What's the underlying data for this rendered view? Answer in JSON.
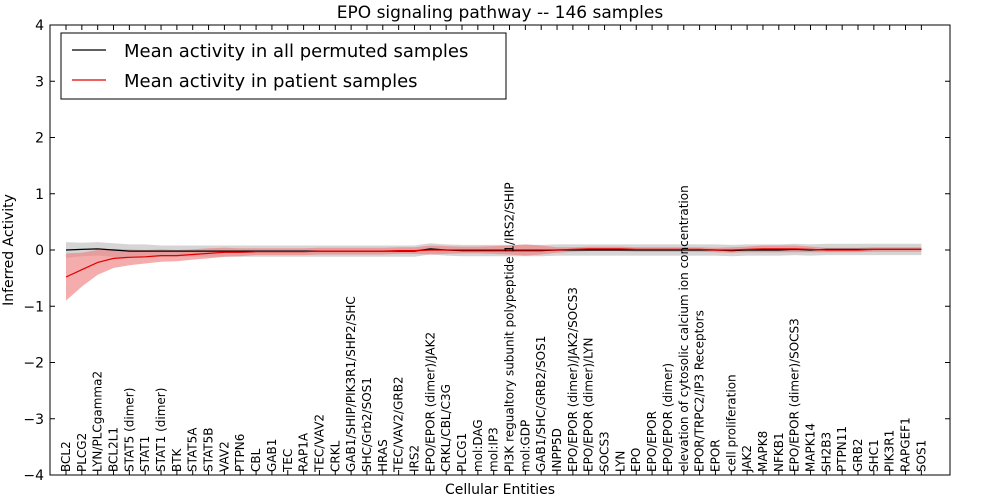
{
  "chart_data": {
    "type": "line",
    "title": "EPO signaling pathway -- 146 samples",
    "xlabel": "Cellular Entities",
    "ylabel": "Inferred Activity",
    "ylim": [
      -4,
      4
    ],
    "yticks": [
      -4,
      -3,
      -2,
      -1,
      0,
      1,
      2,
      3,
      4
    ],
    "ytick_labels": [
      "−4",
      "−3",
      "−2",
      "−1",
      "0",
      "1",
      "2",
      "3",
      "4"
    ],
    "legend_position": "top-left",
    "categories": [
      "BCL2",
      "PLCG2",
      "LYN/PLCgamma2",
      "BCL2L1",
      "STAT5 (dimer)",
      "STAT1",
      "STAT1 (dimer)",
      "BTK",
      "STAT5A",
      "STAT5B",
      "VAV2",
      "PTPN6",
      "CBL",
      "GAB1",
      "TEC",
      "RAP1A",
      "TEC/VAV2",
      "CRKL",
      "GAB1/SHIP/PIK3R1/SHP2/SHC",
      "SHC/Grb2/SOS1",
      "HRAS",
      "TEC/VAV2/GRB2",
      "IRS2",
      "EPO/EPOR (dimer)/JAK2",
      "CRKL/CBL/C3G",
      "PLCG1",
      "mol:DAG",
      "mol:IP3",
      "PI3K regualtory subunit polypeptide 1/IRS2/SHIP",
      "mol:GDP",
      "GAB1/SHC/GRB2/SOS1",
      "INPP5D",
      "EPO/EPOR (dimer)/JAK2/SOCS3",
      "EPO/EPOR (dimer)/LYN",
      "SOCS3",
      "LYN",
      "EPO",
      "EPO/EPOR",
      "EPO/EPOR (dimer)",
      "elevation of cytosolic calcium ion concentration",
      "EPOR/TRPC2/IP3 Receptors",
      "EPOR",
      "cell proliferation",
      "JAK2",
      "MAPK8",
      "NFKB1",
      "EPO/EPOR (dimer)/SOCS3",
      "MAPK14",
      "SH2B3",
      "PTPN11",
      "GRB2",
      "SHC1",
      "PIK3R1",
      "RAPGEF1",
      "SOS1"
    ],
    "series": [
      {
        "name": "Mean activity in all permuted samples",
        "color": "#000000",
        "values": [
          0.0,
          0.01,
          0.02,
          0.0,
          -0.02,
          -0.02,
          -0.02,
          -0.02,
          -0.02,
          -0.02,
          -0.02,
          -0.02,
          -0.02,
          -0.02,
          -0.02,
          -0.02,
          -0.02,
          -0.02,
          -0.02,
          -0.02,
          -0.02,
          -0.02,
          -0.02,
          0.02,
          0.0,
          -0.01,
          -0.01,
          -0.01,
          -0.01,
          -0.01,
          -0.01,
          0.0,
          0.0,
          0.0,
          0.0,
          0.0,
          0.0,
          0.0,
          0.0,
          0.0,
          0.0,
          0.0,
          -0.01,
          0.0,
          0.0,
          0.0,
          0.01,
          0.0,
          0.01,
          0.01,
          0.01,
          0.01,
          0.01,
          0.01,
          0.01
        ],
        "band_half_width": [
          0.14,
          0.12,
          0.12,
          0.12,
          0.12,
          0.12,
          0.1,
          0.1,
          0.1,
          0.1,
          0.1,
          0.1,
          0.1,
          0.1,
          0.1,
          0.1,
          0.1,
          0.1,
          0.1,
          0.1,
          0.1,
          0.1,
          0.1,
          0.1,
          0.1,
          0.1,
          0.1,
          0.1,
          0.1,
          0.1,
          0.1,
          0.1,
          0.1,
          0.1,
          0.1,
          0.1,
          0.1,
          0.1,
          0.1,
          0.1,
          0.1,
          0.1,
          0.1,
          0.1,
          0.1,
          0.1,
          0.1,
          0.1,
          0.1,
          0.1,
          0.1,
          0.1,
          0.1,
          0.1,
          0.1
        ],
        "band_color": "#b3b3b3"
      },
      {
        "name": "Mean activity in patient samples",
        "color": "#e00000",
        "values": [
          -0.48,
          -0.35,
          -0.22,
          -0.15,
          -0.13,
          -0.12,
          -0.1,
          -0.1,
          -0.08,
          -0.06,
          -0.04,
          -0.04,
          -0.03,
          -0.03,
          -0.03,
          -0.03,
          -0.02,
          -0.02,
          -0.02,
          -0.02,
          -0.02,
          -0.01,
          -0.01,
          0.0,
          0.0,
          0.0,
          0.0,
          0.0,
          0.0,
          0.0,
          0.0,
          0.0,
          0.01,
          0.02,
          0.02,
          0.02,
          0.01,
          0.01,
          0.01,
          0.01,
          0.01,
          0.0,
          0.0,
          0.01,
          0.02,
          0.02,
          0.02,
          0.01,
          0.0,
          0.0,
          0.0,
          0.01,
          0.01,
          0.01,
          0.01
        ],
        "band_half_width": [
          0.42,
          0.3,
          0.22,
          0.17,
          0.14,
          0.12,
          0.11,
          0.1,
          0.09,
          0.09,
          0.08,
          0.07,
          0.06,
          0.06,
          0.06,
          0.06,
          0.06,
          0.06,
          0.06,
          0.06,
          0.06,
          0.06,
          0.06,
          0.08,
          0.07,
          0.06,
          0.06,
          0.07,
          0.08,
          0.1,
          0.08,
          0.05,
          0.04,
          0.04,
          0.04,
          0.04,
          0.04,
          0.04,
          0.04,
          0.04,
          0.04,
          0.04,
          0.05,
          0.05,
          0.06,
          0.06,
          0.06,
          0.05,
          0.04,
          0.04,
          0.04,
          0.04,
          0.04,
          0.04,
          0.04
        ],
        "band_color": "#f08080"
      }
    ]
  }
}
